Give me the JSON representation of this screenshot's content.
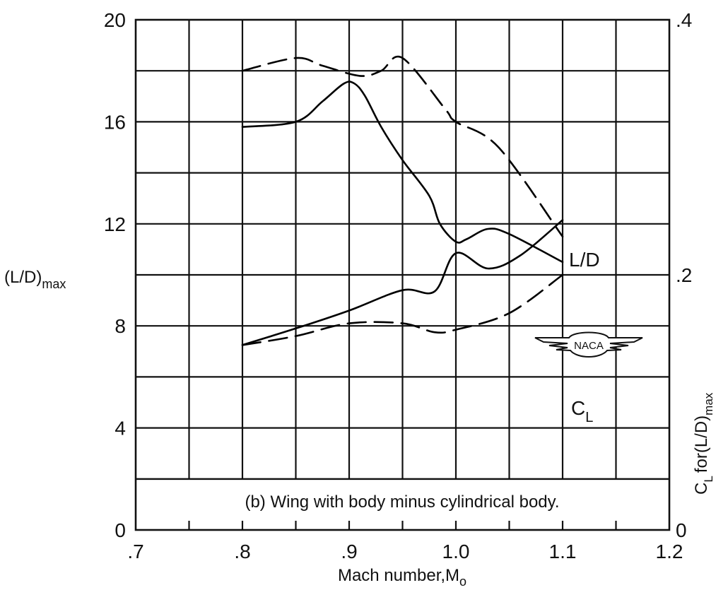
{
  "chart_data": {
    "type": "line",
    "title": "",
    "caption": "(b) Wing with body minus cylindrical body.",
    "xlabel": "Mach number,M",
    "xlabel_sub": "o",
    "ylabel_left": "(L/D)",
    "ylabel_left_sub": "max",
    "ylabel_right": "C",
    "ylabel_right_sub1": "L",
    "ylabel_right_mid": "for(L/D)",
    "ylabel_right_sub2": "max",
    "xlim": [
      0.7,
      1.2
    ],
    "ylim_left": [
      0,
      20
    ],
    "ylim_right": [
      0,
      0.4
    ],
    "x_ticks": [
      ".7",
      ".8",
      ".9",
      "1.0",
      "1.1",
      "1.2"
    ],
    "y_left_ticks": [
      "0",
      "4",
      "8",
      "12",
      "16",
      "20"
    ],
    "y_right_ticks": [
      "0",
      ".2",
      ".4"
    ],
    "grid": true,
    "logo_text": "NACA",
    "series": [
      {
        "axis": "left",
        "style": "solid",
        "label": "L/D",
        "x": [
          0.8,
          0.85,
          0.875,
          0.895,
          0.905,
          0.915,
          0.93,
          0.95,
          0.975,
          0.985,
          1.0,
          1.01,
          1.03,
          1.05,
          1.1
        ],
        "y": [
          15.8,
          16.0,
          16.8,
          17.5,
          17.5,
          17.0,
          15.8,
          14.5,
          13.1,
          12.0,
          11.3,
          11.4,
          11.8,
          11.6,
          10.5
        ]
      },
      {
        "axis": "left",
        "style": "dashed",
        "x": [
          0.8,
          0.85,
          0.875,
          0.91,
          0.93,
          0.95,
          0.99,
          1.0,
          1.04,
          1.1
        ],
        "y": [
          18.0,
          18.5,
          18.2,
          17.8,
          18.0,
          18.5,
          16.5,
          16.0,
          15.0,
          11.5
        ]
      },
      {
        "axis": "right",
        "style": "solid",
        "label": "C",
        "label_sub": "L",
        "x": [
          0.8,
          0.85,
          0.9,
          0.95,
          0.98,
          1.0,
          1.03,
          1.06,
          1.1
        ],
        "y": [
          0.145,
          0.158,
          0.172,
          0.188,
          0.187,
          0.217,
          0.205,
          0.215,
          0.243
        ]
      },
      {
        "axis": "right",
        "style": "dashed",
        "x": [
          0.8,
          0.85,
          0.9,
          0.95,
          0.98,
          1.0,
          1.05,
          1.1
        ],
        "y": [
          0.145,
          0.152,
          0.162,
          0.162,
          0.155,
          0.157,
          0.17,
          0.2
        ]
      }
    ]
  }
}
